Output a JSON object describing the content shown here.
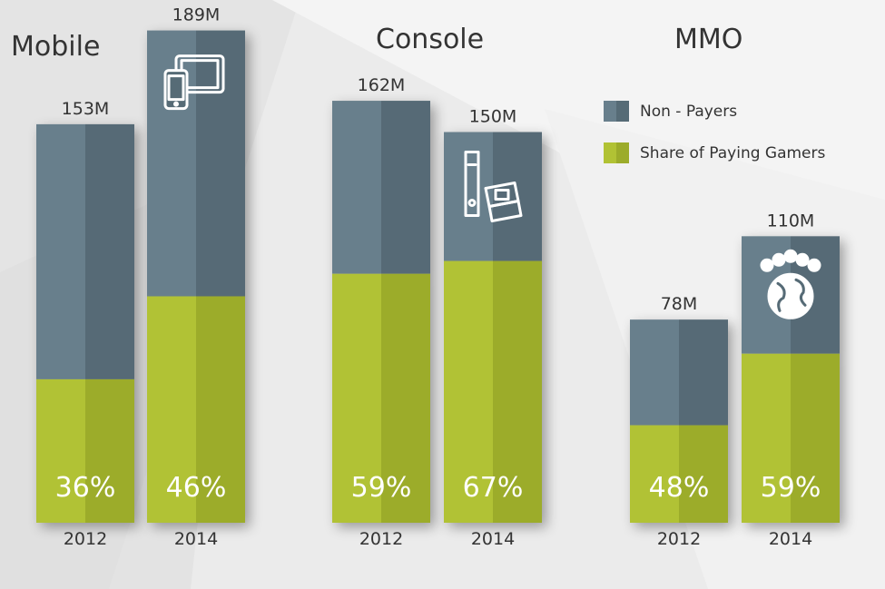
{
  "colors": {
    "non_payers": "#687f8c",
    "non_payers_dark": "#566b76",
    "paying": "#b1c234",
    "paying_dark": "#9cac2a",
    "text_dark": "#333333",
    "text_white": "#ffffff"
  },
  "legend": {
    "non_payers": "Non - Payers",
    "paying": "Share of Paying Gamers"
  },
  "chart_data": [
    {
      "type": "bar",
      "title": "Mobile",
      "icon": "tablet-phone-icon",
      "categories": [
        "2012",
        "2014"
      ],
      "totals_millions": [
        153,
        189
      ],
      "total_labels": [
        "153M",
        "189M"
      ],
      "paying_share_pct": [
        36,
        46
      ],
      "share_labels": [
        "36%",
        "46%"
      ]
    },
    {
      "type": "bar",
      "title": "Console",
      "icon": "console-handheld-icon",
      "categories": [
        "2012",
        "2014"
      ],
      "totals_millions": [
        162,
        150
      ],
      "total_labels": [
        "162M",
        "150M"
      ],
      "paying_share_pct": [
        59,
        67
      ],
      "share_labels": [
        "59%",
        "67%"
      ]
    },
    {
      "type": "bar",
      "title": "MMO",
      "icon": "globe-people-icon",
      "categories": [
        "2012",
        "2014"
      ],
      "totals_millions": [
        78,
        110
      ],
      "total_labels": [
        "78M",
        "110M"
      ],
      "paying_share_pct": [
        48,
        59
      ],
      "share_labels": [
        "48%",
        "59%"
      ]
    }
  ]
}
